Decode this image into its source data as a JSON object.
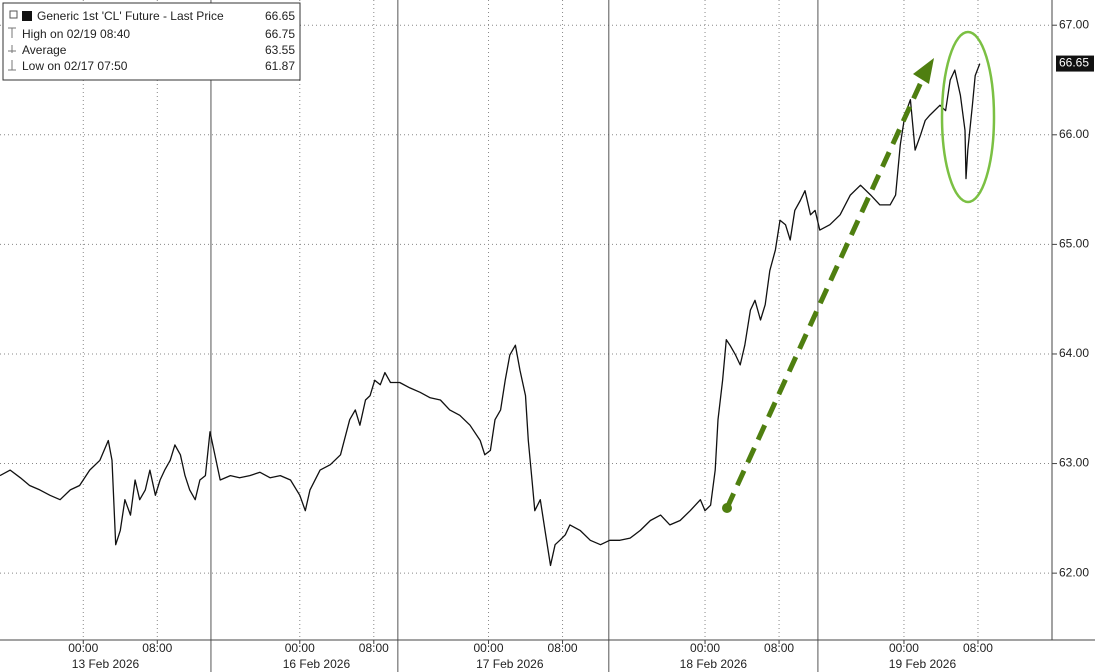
{
  "chart_data": {
    "type": "line",
    "legend_title": "Generic 1st 'CL' Future - Last Price",
    "last_price": 66.65,
    "legend_stats": [
      {
        "label": "High on 02/19 08:40",
        "value": 66.75
      },
      {
        "label": "Average",
        "value": 63.55
      },
      {
        "label": "Low on 02/17 07:50",
        "value": 61.87
      }
    ],
    "xlim": [
      0,
      113.7
    ],
    "ylim": [
      61.39,
      67.23
    ],
    "yticks": [
      {
        "value": 62,
        "label": "62.00"
      },
      {
        "value": 63,
        "label": "63.00"
      },
      {
        "value": 64,
        "label": "64.00"
      },
      {
        "value": 65,
        "label": "65.00"
      },
      {
        "value": 66,
        "label": "66.00"
      },
      {
        "value": 67,
        "label": "67.00"
      }
    ],
    "xticks": [
      {
        "value": 9.0,
        "label": "00:00"
      },
      {
        "value": 17.0,
        "label": "08:00"
      },
      {
        "value": 32.4,
        "label": "00:00"
      },
      {
        "value": 40.4,
        "label": "08:00"
      },
      {
        "value": 52.8,
        "label": "00:00"
      },
      {
        "value": 60.8,
        "label": "08:00"
      },
      {
        "value": 76.2,
        "label": "00:00"
      },
      {
        "value": 84.2,
        "label": "08:00"
      },
      {
        "value": 97.7,
        "label": "00:00"
      },
      {
        "value": 105.7,
        "label": "08:00"
      }
    ],
    "date_labels": [
      {
        "value": 11.4,
        "label": "13 Feb 2026"
      },
      {
        "value": 34.2,
        "label": "16 Feb 2026"
      },
      {
        "value": 55.1,
        "label": "17 Feb 2026"
      },
      {
        "value": 77.1,
        "label": "18 Feb 2026"
      },
      {
        "value": 99.7,
        "label": "19 Feb 2026"
      }
    ],
    "session_breaks": [
      22.8,
      43.0,
      65.8,
      88.4
    ],
    "grid": true,
    "series": [
      {
        "color": "#111111",
        "x": [
          0,
          1.1,
          2.2,
          3.2,
          4.3,
          5.4,
          6.5,
          7.6,
          8.6,
          9.7,
          10.8,
          11.7,
          12.1,
          12.5,
          13.0,
          13.5,
          14.1,
          14.6,
          15.1,
          15.7,
          16.2,
          16.8,
          17.3,
          17.8,
          18.4,
          18.9,
          19.5,
          20.0,
          20.5,
          21.1,
          21.6,
          22.2,
          22.7,
          23.8,
          24.9,
          25.9,
          27.0,
          28.1,
          29.2,
          30.3,
          31.4,
          32.4,
          33.0,
          33.5,
          34.6,
          35.7,
          36.8,
          37.8,
          38.4,
          38.9,
          39.5,
          40.0,
          40.5,
          41.1,
          41.6,
          42.2,
          43.2,
          44.3,
          45.4,
          46.5,
          47.6,
          48.6,
          49.7,
          50.8,
          51.9,
          52.4,
          53.0,
          53.5,
          54.1,
          54.6,
          55.1,
          55.7,
          56.2,
          56.8,
          57.1,
          57.5,
          57.8,
          58.4,
          58.9,
          59.5,
          60.0,
          60.5,
          61.1,
          61.6,
          62.7,
          63.8,
          64.9,
          65.9,
          67.0,
          68.1,
          69.2,
          70.3,
          71.4,
          72.4,
          73.5,
          74.6,
          75.7,
          76.2,
          76.8,
          77.3,
          77.6,
          78.1,
          78.5,
          78.9,
          79.5,
          80.0,
          80.5,
          81.1,
          81.6,
          82.2,
          82.7,
          83.2,
          83.8,
          84.3,
          84.9,
          85.4,
          85.9,
          86.5,
          87.0,
          87.6,
          88.1,
          88.6,
          89.7,
          90.8,
          91.9,
          93.0,
          94.1,
          95.1,
          96.2,
          96.8,
          97.3,
          97.8,
          98.4,
          98.9,
          99.5,
          100.0,
          100.5,
          101.6,
          102.2,
          102.7,
          103.2,
          103.8,
          104.3,
          104.4,
          104.6,
          105.1,
          105.4,
          105.9
        ],
        "values": [
          62.89,
          62.94,
          62.87,
          62.8,
          62.76,
          62.71,
          62.67,
          62.76,
          62.8,
          62.94,
          63.03,
          63.21,
          63.03,
          62.26,
          62.39,
          62.67,
          62.53,
          62.85,
          62.67,
          62.76,
          62.94,
          62.71,
          62.85,
          62.94,
          63.03,
          63.17,
          63.08,
          62.89,
          62.76,
          62.67,
          62.85,
          62.89,
          63.29,
          62.85,
          62.89,
          62.87,
          62.89,
          62.92,
          62.87,
          62.89,
          62.85,
          62.71,
          62.57,
          62.76,
          62.94,
          62.99,
          63.08,
          63.4,
          63.49,
          63.35,
          63.58,
          63.62,
          63.76,
          63.72,
          63.83,
          63.74,
          63.74,
          63.69,
          63.65,
          63.6,
          63.58,
          63.49,
          63.44,
          63.35,
          63.21,
          63.08,
          63.12,
          63.4,
          63.49,
          63.76,
          63.99,
          64.08,
          63.85,
          63.62,
          63.21,
          62.85,
          62.57,
          62.67,
          62.39,
          62.07,
          62.26,
          62.3,
          62.35,
          62.44,
          62.39,
          62.3,
          62.26,
          62.3,
          62.3,
          62.32,
          62.39,
          62.48,
          62.53,
          62.44,
          62.48,
          62.57,
          62.67,
          62.57,
          62.62,
          62.94,
          63.4,
          63.76,
          64.13,
          64.08,
          63.99,
          63.9,
          64.08,
          64.4,
          64.49,
          64.31,
          64.45,
          64.76,
          64.95,
          65.22,
          65.18,
          65.04,
          65.31,
          65.4,
          65.49,
          65.27,
          65.31,
          65.13,
          65.18,
          65.27,
          65.45,
          65.54,
          65.45,
          65.36,
          65.36,
          65.45,
          65.91,
          66.18,
          66.32,
          65.86,
          66.0,
          66.13,
          66.18,
          66.27,
          66.22,
          66.5,
          66.59,
          66.36,
          66.04,
          65.6,
          65.86,
          66.27,
          66.54,
          66.65
        ]
      }
    ]
  }
}
